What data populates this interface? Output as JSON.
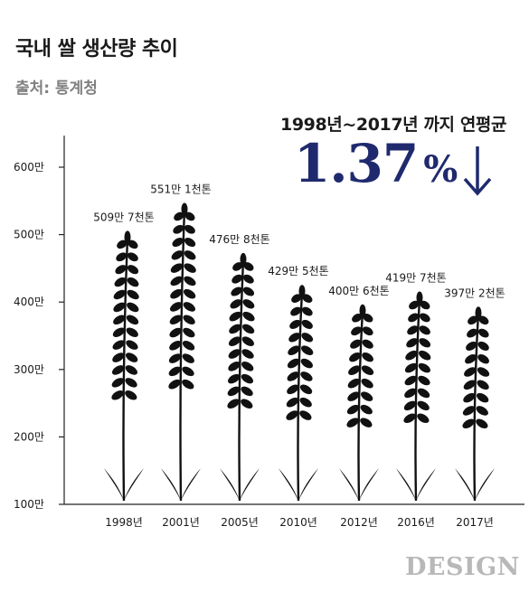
{
  "title": "국내 쌀 생산량 추이",
  "source": "출처: 통계청",
  "callout": {
    "label": "1998년~2017년 까지 연평균",
    "value": "1.37",
    "unit": "%",
    "direction_icon": "down-arrow-icon",
    "color": "#1f2a6e"
  },
  "brand": "DESIGN",
  "chart_data": {
    "type": "bar",
    "categories": [
      "1998년",
      "2001년",
      "2005년",
      "2010년",
      "2012년",
      "2016년",
      "2017년"
    ],
    "values": [
      5097,
      5511,
      4768,
      4295,
      4006,
      4197,
      3972
    ],
    "data_labels": [
      "509만 7천톤",
      "551만 1천톤",
      "476만 8천톤",
      "429만 5천톤",
      "400만 6천톤",
      "419만 7천톤",
      "397만 2천톤"
    ],
    "y_ticks": [
      "100만",
      "200만",
      "300만",
      "400만",
      "500만",
      "600만"
    ],
    "y_tick_values": [
      1000,
      2000,
      3000,
      4000,
      5000,
      6000
    ],
    "ylim": [
      1000,
      6500
    ],
    "unit": "천톤",
    "mark_style": "rice-stalk-silhouette",
    "title": "국내 쌀 생산량 추이"
  }
}
